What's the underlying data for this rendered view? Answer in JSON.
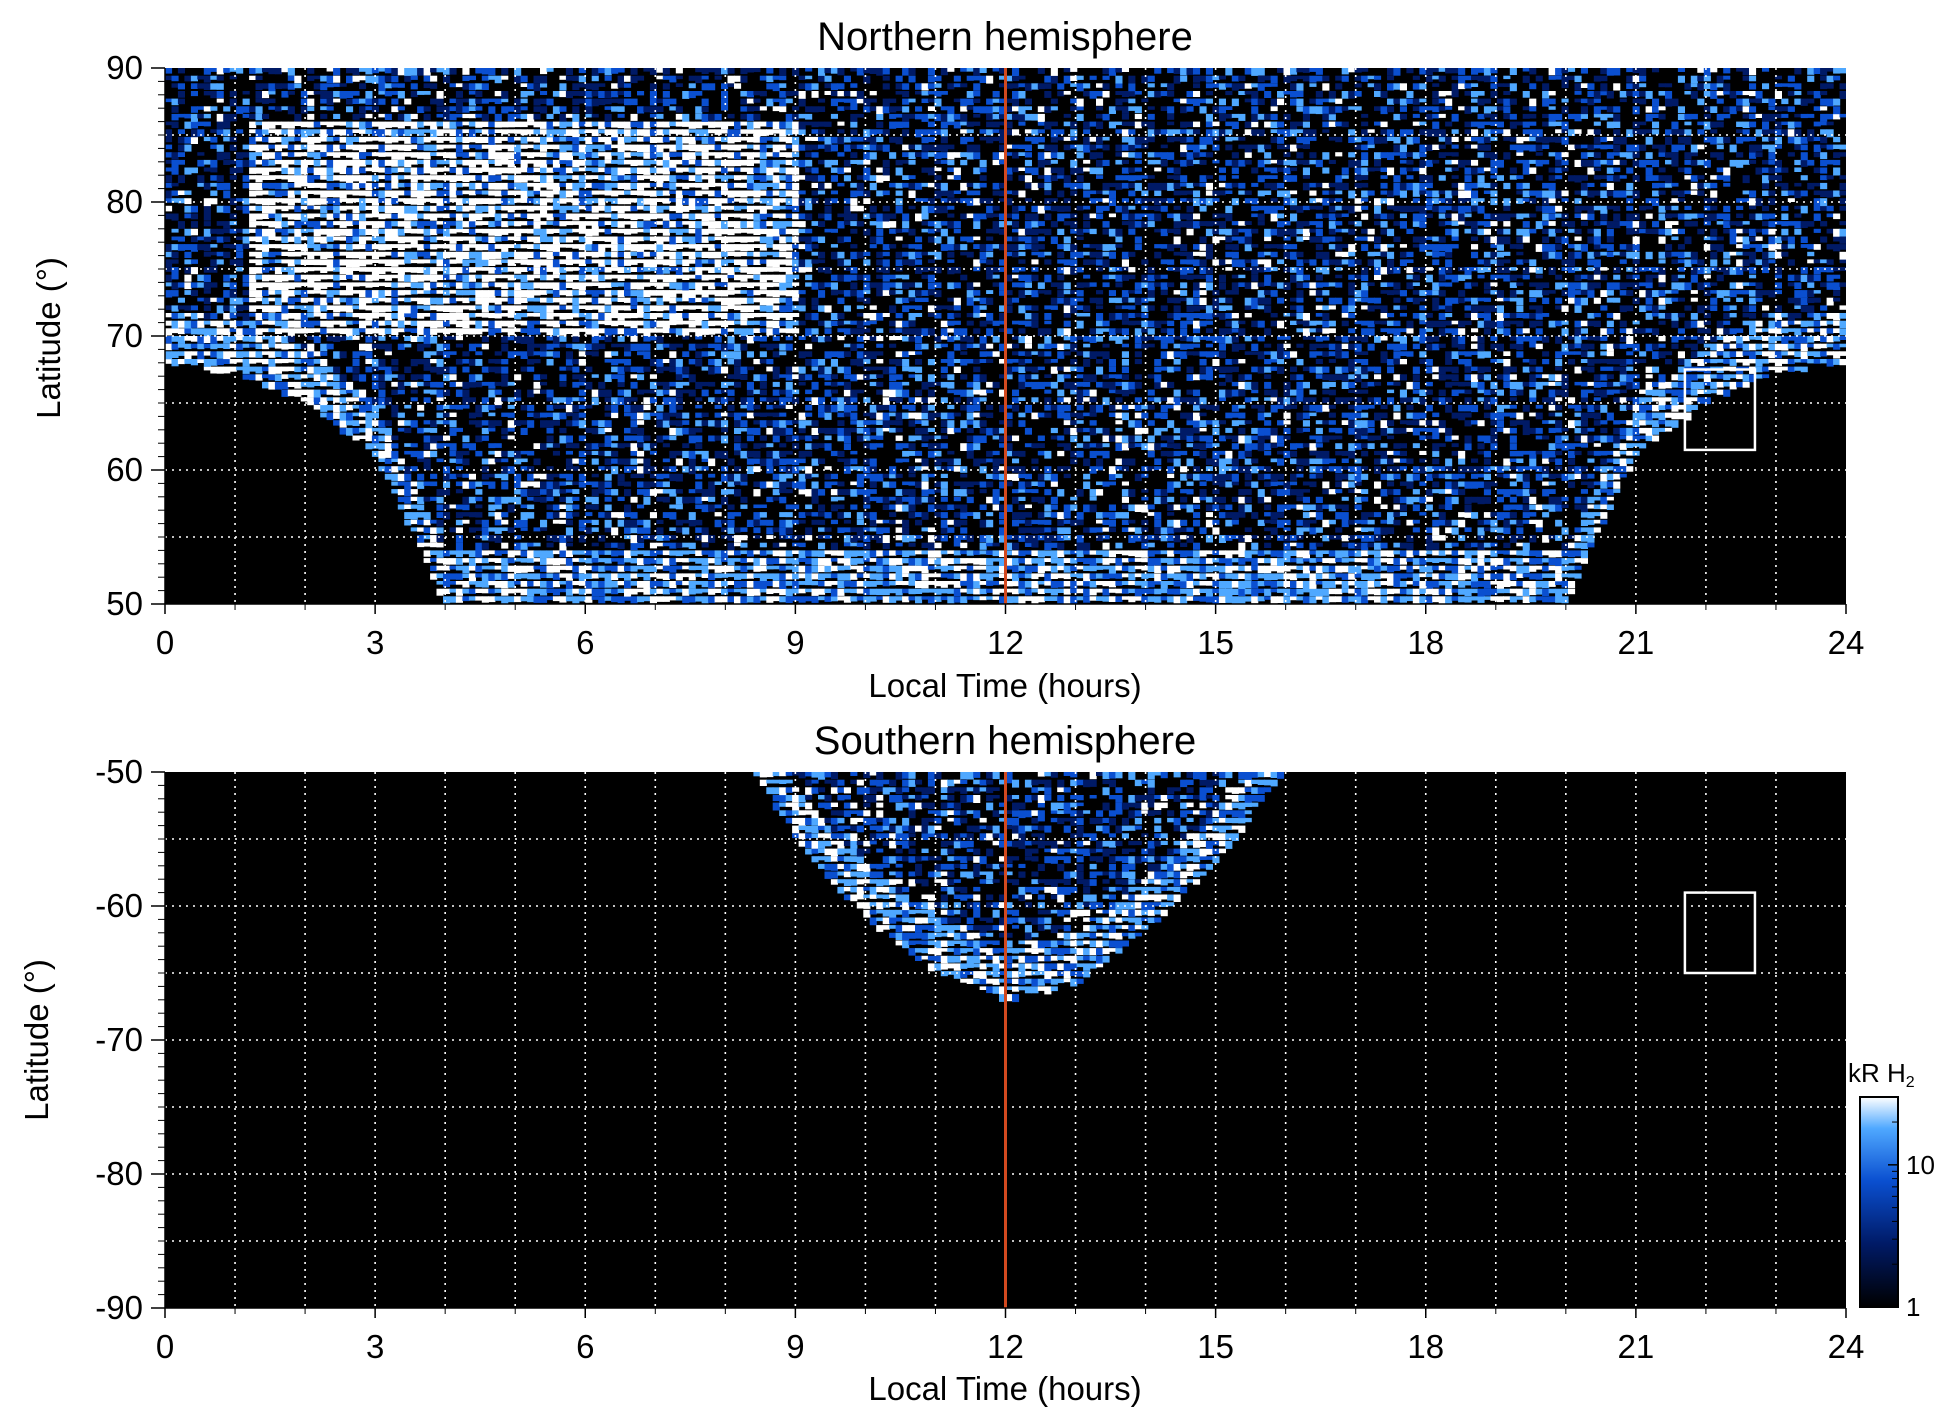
{
  "chart_data": [
    {
      "type": "heatmap",
      "title": "Northern hemisphere",
      "xlabel": "Local Time (hours)",
      "ylabel": "Latitude (°)",
      "xlim": [
        0,
        24
      ],
      "ylim": [
        50,
        90
      ],
      "xticks": [
        "0",
        "3",
        "6",
        "9",
        "12",
        "15",
        "18",
        "21",
        "24"
      ],
      "yticks": [
        "50",
        "60",
        "70",
        "80",
        "90"
      ],
      "grid": true,
      "noon_line": {
        "x": 12,
        "color": "#d2491f"
      },
      "marker_box": {
        "x": [
          21.7,
          22.7
        ],
        "y": [
          61.5,
          67.5
        ]
      },
      "coverage_boundary": [
        [
          0,
          68
        ],
        [
          1,
          67
        ],
        [
          2,
          65
        ],
        [
          3,
          61
        ],
        [
          4,
          50
        ],
        [
          20,
          50
        ],
        [
          21,
          61
        ],
        [
          22,
          65
        ],
        [
          23,
          67
        ],
        [
          24,
          68
        ]
      ],
      "bright_region": {
        "x": [
          1.2,
          9.0
        ],
        "y": [
          70,
          86
        ],
        "description": "brightest emission"
      }
    },
    {
      "type": "heatmap",
      "title": "Southern hemisphere",
      "xlabel": "Local Time (hours)",
      "ylabel": "Latitude (°)",
      "xlim": [
        0,
        24
      ],
      "ylim": [
        -90,
        -50
      ],
      "xticks": [
        "0",
        "3",
        "6",
        "9",
        "12",
        "15",
        "18",
        "21",
        "24"
      ],
      "yticks": [
        "-50",
        "-60",
        "-70",
        "-80",
        "-90"
      ],
      "grid": true,
      "noon_line": {
        "x": 12,
        "color": "#d2491f"
      },
      "marker_box": {
        "x": [
          21.7,
          22.7
        ],
        "y": [
          -65,
          -59
        ]
      },
      "coverage_boundary": [
        [
          8.4,
          -50
        ],
        [
          9,
          -55
        ],
        [
          10,
          -61
        ],
        [
          11,
          -65
        ],
        [
          12,
          -67
        ],
        [
          13,
          -66
        ],
        [
          14,
          -62
        ],
        [
          15,
          -57
        ],
        [
          16,
          -50
        ]
      ]
    }
  ],
  "colorbar": {
    "title": "kR H",
    "title_subscript": "2",
    "scale": "log",
    "range": [
      1,
      30
    ],
    "tick_labels": [
      "1",
      "10"
    ],
    "colors": [
      "#000000",
      "#001a66",
      "#0a4fd0",
      "#4fa8ff",
      "#ffffff"
    ]
  }
}
